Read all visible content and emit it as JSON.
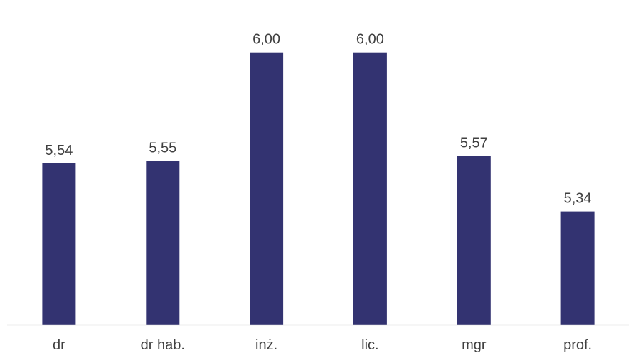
{
  "chart_data": {
    "type": "bar",
    "title": "",
    "xlabel": "",
    "ylabel": "",
    "categories": [
      "dr",
      "dr hab.",
      "inż.",
      "lic.",
      "mgr",
      "prof."
    ],
    "series": [
      {
        "values": [
          5.54,
          5.55,
          6.0,
          6.0,
          5.57,
          5.34
        ],
        "value_labels": [
          "5,54",
          "5,55",
          "6,00",
          "6,00",
          "5,57",
          "5,34"
        ],
        "color": "#333371"
      }
    ],
    "ylim": [
      4.87,
      6.07
    ],
    "grid": false,
    "legend": "none",
    "axis_color": "#d9d9d9",
    "label_color": "#404040"
  }
}
